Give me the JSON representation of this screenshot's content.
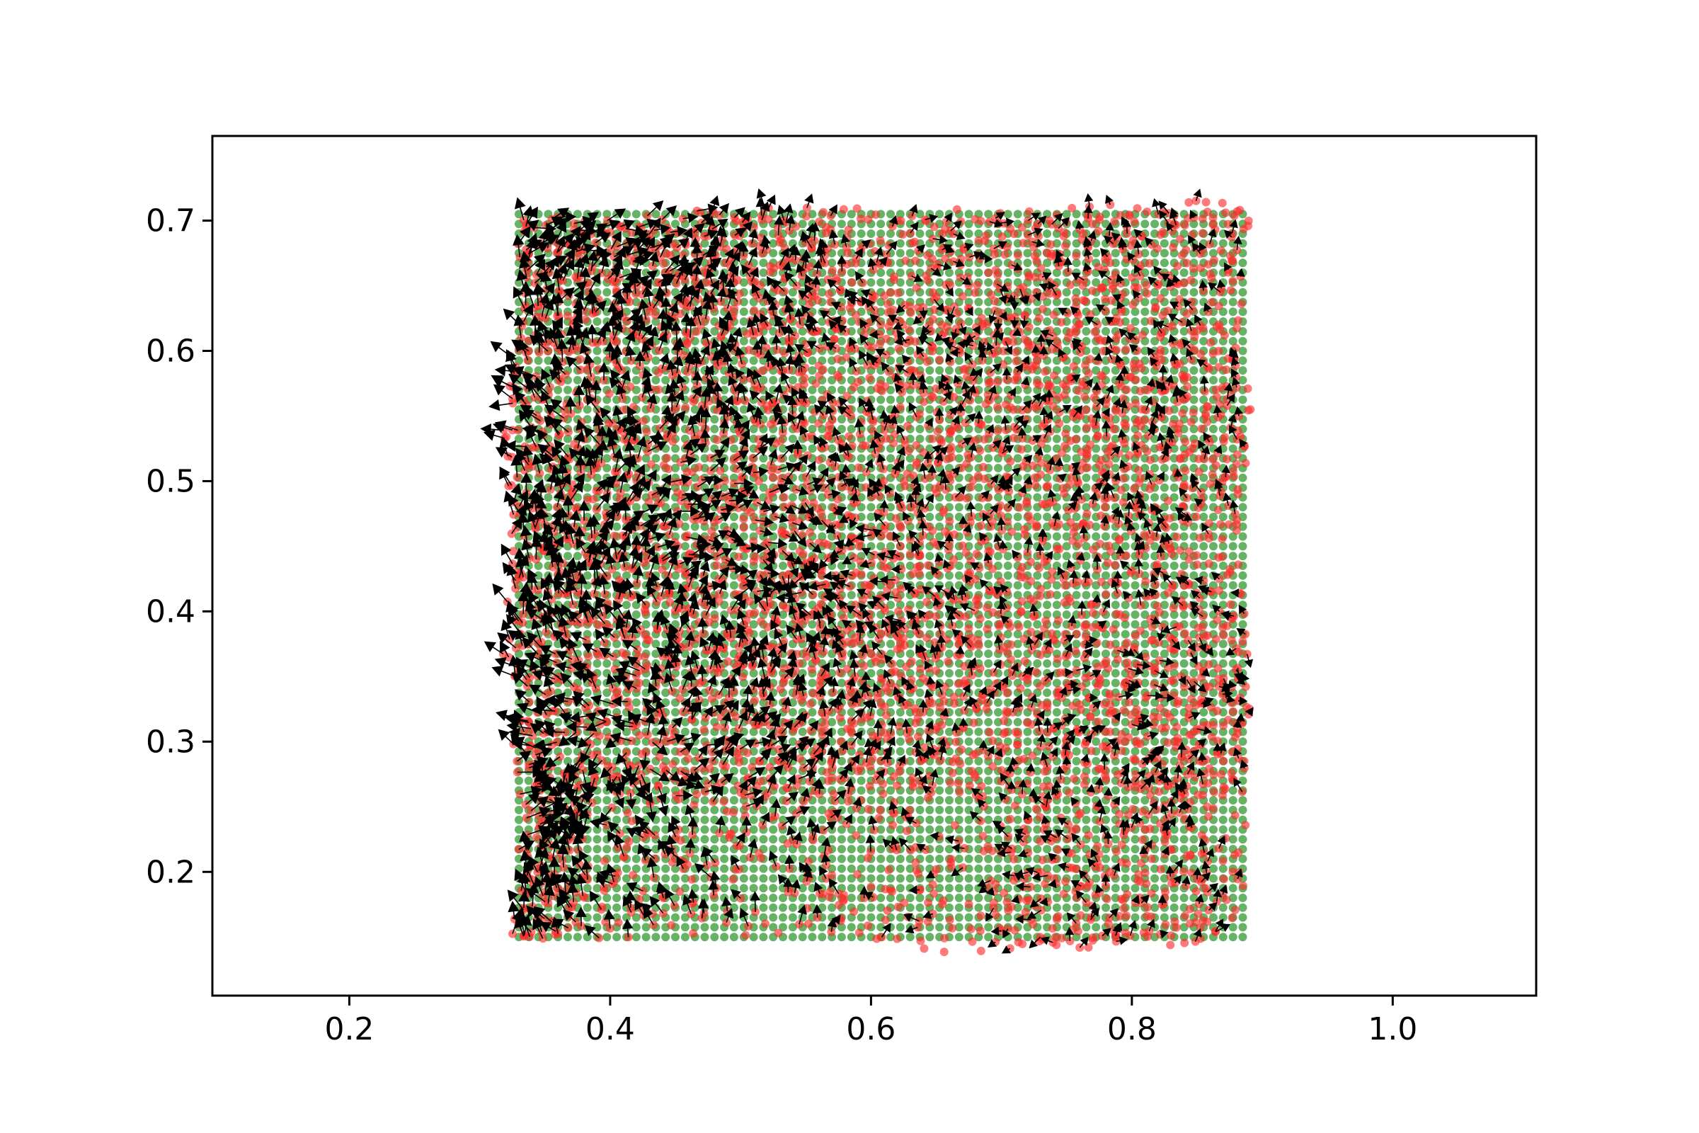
{
  "chart_data": {
    "type": "scatter",
    "title": "",
    "xlabel": "",
    "ylabel": "",
    "xlim": [
      0.095,
      1.11
    ],
    "ylim": [
      0.105,
      0.765
    ],
    "grid": false,
    "legend": "none",
    "x_ticks": [
      0.2,
      0.4,
      0.6,
      0.8,
      1.0
    ],
    "x_tick_labels": [
      "0.2",
      "0.4",
      "0.6",
      "0.8",
      "1.0"
    ],
    "y_ticks": [
      0.2,
      0.3,
      0.4,
      0.5,
      0.6,
      0.7
    ],
    "y_tick_labels": [
      "0.2",
      "0.3",
      "0.4",
      "0.5",
      "0.6",
      "0.7"
    ],
    "colors": {
      "grid_points": "#008000",
      "displaced_points": "#ff2a2a",
      "arrows": "#000000",
      "axes": "#000000",
      "background": "#ffffff"
    },
    "series": [
      {
        "kind": "scatter",
        "marker": "dot",
        "color": "#008000",
        "grid": {
          "x": [
            0.33,
            0.89
          ],
          "y": [
            0.15,
            0.71
          ],
          "step": 0.0075
        }
      },
      {
        "kind": "scatter",
        "marker": "dot",
        "color": "#ff2a2a",
        "region": {
          "x": [
            0.31,
            0.9
          ],
          "y": [
            0.14,
            0.73
          ]
        }
      },
      {
        "kind": "quiver",
        "color": "#000000",
        "region": {
          "x": [
            0.31,
            0.9
          ],
          "y": [
            0.14,
            0.73
          ]
        }
      }
    ]
  }
}
